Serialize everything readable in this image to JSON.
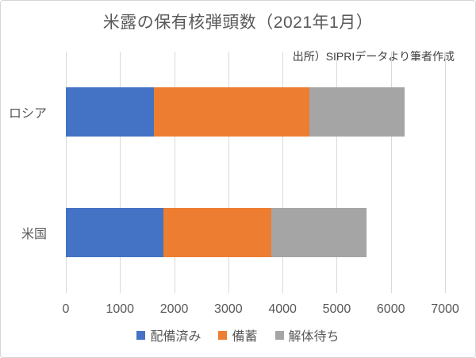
{
  "chart_data": {
    "type": "bar",
    "orientation": "horizontal",
    "stacked": true,
    "title": "米露の保有核弾頭数（2021年1月）",
    "source_note": "出所）SIPRIデータより筆者作成",
    "categories": [
      "ロシア",
      "米国"
    ],
    "series": [
      {
        "name": "配備済み",
        "color": "#4472C4",
        "values": [
          1625,
          1800
        ]
      },
      {
        "name": "備蓄",
        "color": "#ED7D31",
        "values": [
          2870,
          2000
        ]
      },
      {
        "name": "解体待ち",
        "color": "#A5A5A5",
        "values": [
          1760,
          1750
        ]
      }
    ],
    "totals": [
      6255,
      5550
    ],
    "xlabel": "",
    "ylabel": "",
    "xlim": [
      0,
      7000
    ],
    "xticks": [
      0,
      1000,
      2000,
      3000,
      4000,
      5000,
      6000,
      7000
    ],
    "grid": true,
    "legend_position": "bottom",
    "gridline_color": "#D9D9D9",
    "text_color": "#595959"
  }
}
